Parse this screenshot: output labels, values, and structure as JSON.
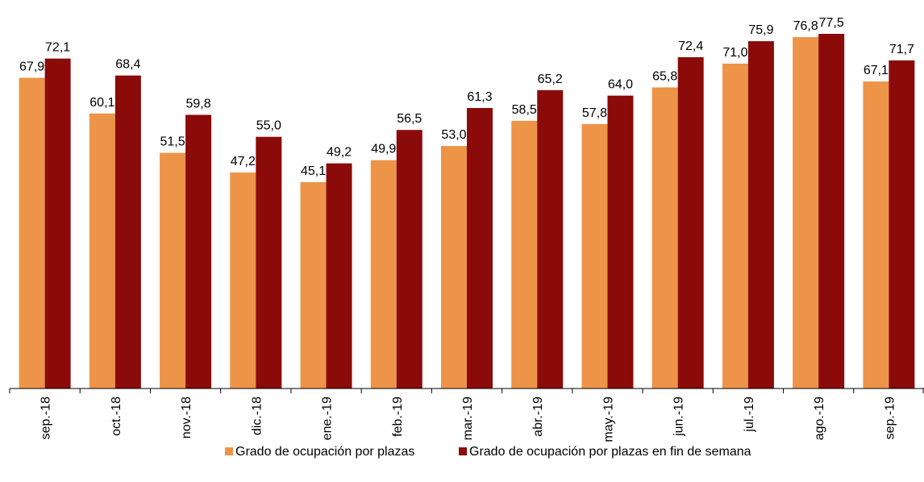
{
  "chart_data": {
    "type": "bar",
    "categories": [
      "sep.-18",
      "oct.-18",
      "nov.-18",
      "dic.-18",
      "ene.-19",
      "feb.-19",
      "mar.-19",
      "abr.-19",
      "may.-19",
      "jun.-19",
      "jul.-19",
      "ago.-19",
      "sep.-19"
    ],
    "series": [
      {
        "name": "Grado de ocupación por plazas",
        "color": "#ED9448",
        "values": [
          67.9,
          60.1,
          51.5,
          47.2,
          45.1,
          49.9,
          53.0,
          58.5,
          57.8,
          65.8,
          71.0,
          76.8,
          67.1
        ],
        "labels": [
          "67,9",
          "60,1",
          "51,5",
          "47,2",
          "45,1",
          "49,9",
          "53,0",
          "58,5",
          "57,8",
          "65,8",
          "71,0",
          "76,8",
          "67,1"
        ]
      },
      {
        "name": "Grado de ocupación por plazas en fin de semana",
        "color": "#8B0A0A",
        "values": [
          72.1,
          68.4,
          59.8,
          55.0,
          49.2,
          56.5,
          61.3,
          65.2,
          64.0,
          72.4,
          75.9,
          77.5,
          71.7
        ],
        "labels": [
          "72,1",
          "68,4",
          "59,8",
          "55,0",
          "49,2",
          "56,5",
          "61,3",
          "65,2",
          "64,0",
          "72,4",
          "75,9",
          "77,5",
          "71,7"
        ]
      }
    ],
    "ylim": [
      0,
      77.5
    ],
    "grid": false,
    "legend": "bottom"
  }
}
